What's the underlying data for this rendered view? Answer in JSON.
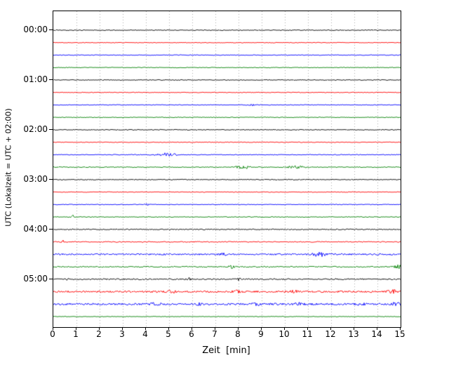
{
  "chart_data": {
    "type": "line",
    "subtype": "helicorder-dayplot",
    "title": "",
    "xlabel": "Zeit  [min]",
    "ylabel": "UTC (Lokalzeit = UTC + 02:00)",
    "x_range": [
      0,
      15
    ],
    "x_ticks": [
      0,
      1,
      2,
      3,
      4,
      5,
      6,
      7,
      8,
      9,
      10,
      11,
      12,
      13,
      14,
      15
    ],
    "grid": "vertical-dotted",
    "grid_color": "#aaaaaa",
    "hour_labels": [
      "00:00",
      "01:00",
      "02:00",
      "03:00",
      "04:00",
      "05:00"
    ],
    "trace_color_cycle": [
      "#000000",
      "#ff0000",
      "#0000ff",
      "#008000"
    ],
    "traces": [
      {
        "label": "00:00",
        "color": "#000000",
        "noise": 0.55,
        "events": []
      },
      {
        "label": "00:15",
        "color": "#ff0000",
        "noise": 0.5,
        "events": []
      },
      {
        "label": "00:30",
        "color": "#0000ff",
        "noise": 0.5,
        "events": []
      },
      {
        "label": "00:45",
        "color": "#008000",
        "noise": 0.5,
        "events": []
      },
      {
        "label": "01:00",
        "color": "#000000",
        "noise": 0.55,
        "events": []
      },
      {
        "label": "01:15",
        "color": "#ff0000",
        "noise": 0.5,
        "events": []
      },
      {
        "label": "01:30",
        "color": "#0000ff",
        "noise": 0.5,
        "events": [
          {
            "x": 8.6,
            "a": 1.2,
            "w": 0.15
          }
        ]
      },
      {
        "label": "01:45",
        "color": "#008000",
        "noise": 0.5,
        "events": []
      },
      {
        "label": "02:00",
        "color": "#000000",
        "noise": 0.6,
        "events": []
      },
      {
        "label": "02:15",
        "color": "#ff0000",
        "noise": 0.5,
        "events": []
      },
      {
        "label": "02:30",
        "color": "#0000ff",
        "noise": 0.55,
        "events": [
          {
            "x": 4.9,
            "a": 2.2,
            "w": 0.45
          }
        ]
      },
      {
        "label": "02:45",
        "color": "#008000",
        "noise": 0.55,
        "events": [
          {
            "x": 8.2,
            "a": 2.4,
            "w": 0.3
          },
          {
            "x": 10.5,
            "a": 1.8,
            "w": 0.35
          }
        ]
      },
      {
        "label": "03:00",
        "color": "#000000",
        "noise": 0.6,
        "events": []
      },
      {
        "label": "03:15",
        "color": "#ff0000",
        "noise": 0.5,
        "events": [
          {
            "x": 12.6,
            "a": 1.0,
            "w": 0.1
          }
        ]
      },
      {
        "label": "03:30",
        "color": "#0000ff",
        "noise": 0.5,
        "events": [
          {
            "x": 4.1,
            "a": 1.4,
            "w": 0.12
          }
        ]
      },
      {
        "label": "03:45",
        "color": "#008000",
        "noise": 0.5,
        "events": [
          {
            "x": 0.85,
            "a": 2.6,
            "w": 0.07
          }
        ]
      },
      {
        "label": "04:00",
        "color": "#000000",
        "noise": 0.75,
        "events": []
      },
      {
        "label": "04:15",
        "color": "#ff0000",
        "noise": 0.7,
        "events": [
          {
            "x": 0.4,
            "a": 2.6,
            "w": 0.07
          }
        ]
      },
      {
        "label": "04:30",
        "color": "#0000ff",
        "noise": 1.1,
        "events": [
          {
            "x": 7.3,
            "a": 1.2,
            "w": 0.25
          },
          {
            "x": 11.5,
            "a": 2.6,
            "w": 0.3
          }
        ]
      },
      {
        "label": "04:45",
        "color": "#008000",
        "noise": 0.8,
        "events": [
          {
            "x": 7.7,
            "a": 2.0,
            "w": 0.12
          },
          {
            "x": 14.9,
            "a": 2.4,
            "w": 0.15
          }
        ]
      },
      {
        "label": "05:00",
        "color": "#000000",
        "noise": 0.9,
        "events": [
          {
            "x": 0.6,
            "a": 1.4,
            "w": 0.1
          },
          {
            "x": 5.85,
            "a": 1.8,
            "w": 0.12
          },
          {
            "x": 8.0,
            "a": 1.2,
            "w": 0.12
          }
        ]
      },
      {
        "label": "05:15",
        "color": "#ff0000",
        "noise": 1.3,
        "events": [
          {
            "x": 5.2,
            "a": 1.6,
            "w": 0.25
          },
          {
            "x": 7.9,
            "a": 1.5,
            "w": 0.25
          },
          {
            "x": 10.4,
            "a": 1.5,
            "w": 0.25
          },
          {
            "x": 14.7,
            "a": 1.8,
            "w": 0.25
          }
        ]
      },
      {
        "label": "05:30",
        "color": "#0000ff",
        "noise": 1.3,
        "events": [
          {
            "x": 4.4,
            "a": 1.5,
            "w": 0.2
          },
          {
            "x": 6.3,
            "a": 1.2,
            "w": 0.15
          },
          {
            "x": 8.8,
            "a": 1.5,
            "w": 0.2
          },
          {
            "x": 10.6,
            "a": 1.5,
            "w": 0.2
          },
          {
            "x": 13.3,
            "a": 1.2,
            "w": 0.15
          },
          {
            "x": 14.8,
            "a": 2.4,
            "w": 0.18
          }
        ]
      },
      {
        "label": "05:45",
        "color": "#008000",
        "noise": 0.45,
        "events": []
      }
    ]
  }
}
